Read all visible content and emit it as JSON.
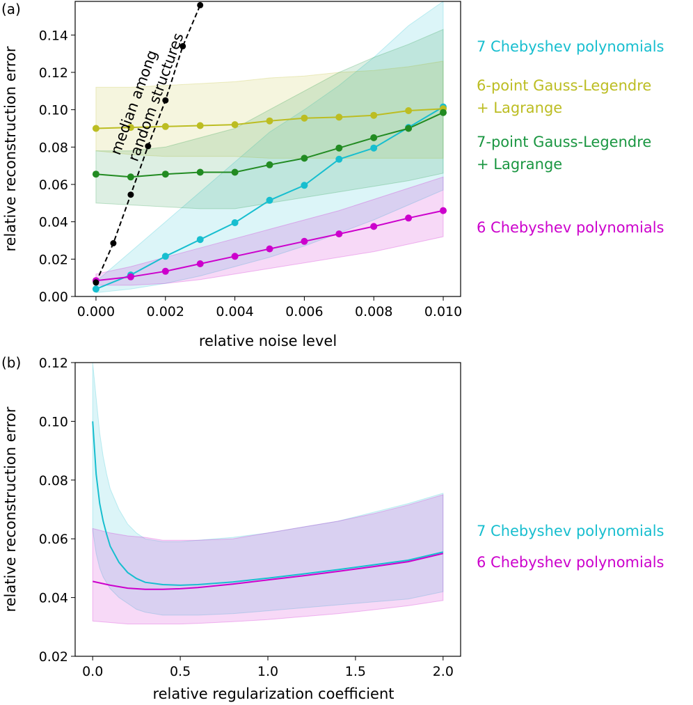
{
  "chart_data": [
    {
      "panel_label": "(a)",
      "type": "line",
      "xlabel": "relative noise level",
      "ylabel": "relative reconstruction error",
      "xlim": [
        -0.0006,
        0.0105
      ],
      "ylim": [
        0.0,
        0.158
      ],
      "xticks": [
        0.0,
        0.002,
        0.004,
        0.006,
        0.008,
        0.01
      ],
      "xtick_labels": [
        "0.000",
        "0.002",
        "0.004",
        "0.006",
        "0.008",
        "0.010"
      ],
      "yticks": [
        0.0,
        0.02,
        0.04,
        0.06,
        0.08,
        0.1,
        0.12,
        0.14
      ],
      "ytick_labels": [
        "0.00",
        "0.02",
        "0.04",
        "0.06",
        "0.08",
        "0.10",
        "0.12",
        "0.14"
      ],
      "annotation": {
        "line1": "median among",
        "line2": "random structures"
      },
      "series": [
        {
          "name": "7 Chebyshev polynomials",
          "color": "#17becf",
          "label_lines": [
            "7 Chebyshev polynomials"
          ],
          "x": [
            0.0,
            0.001,
            0.002,
            0.003,
            0.004,
            0.005,
            0.006,
            0.007,
            0.008,
            0.009,
            0.01
          ],
          "values": [
            0.004,
            0.0115,
            0.0215,
            0.0305,
            0.0395,
            0.0515,
            0.0595,
            0.0735,
            0.0795,
            0.0905,
            0.1015
          ],
          "band_lower": [
            0.002,
            0.004,
            0.007,
            0.011,
            0.016,
            0.021,
            0.027,
            0.034,
            0.041,
            0.049,
            0.057
          ],
          "band_upper": [
            0.008,
            0.024,
            0.04,
            0.056,
            0.072,
            0.088,
            0.1,
            0.113,
            0.128,
            0.145,
            0.158
          ]
        },
        {
          "name": "6-point Gauss-Legendre + Lagrange",
          "color": "#bcbd22",
          "label_lines": [
            "6-point Gauss-Legendre",
            "+ Lagrange"
          ],
          "x": [
            0.0,
            0.001,
            0.002,
            0.003,
            0.004,
            0.005,
            0.006,
            0.007,
            0.008,
            0.009,
            0.01
          ],
          "values": [
            0.09,
            0.0905,
            0.091,
            0.0915,
            0.092,
            0.094,
            0.0955,
            0.096,
            0.097,
            0.0995,
            0.1005
          ],
          "band_lower": [
            0.078,
            0.076,
            0.075,
            0.075,
            0.075,
            0.074,
            0.074,
            0.074,
            0.074,
            0.074,
            0.074
          ],
          "band_upper": [
            0.112,
            0.112,
            0.113,
            0.114,
            0.115,
            0.117,
            0.118,
            0.12,
            0.121,
            0.123,
            0.126
          ]
        },
        {
          "name": "7-point Gauss-Legendre + Lagrange",
          "color": "#1a9641",
          "line_color": "#228b22",
          "label_lines": [
            "7-point Gauss-Legendre",
            "+ Lagrange"
          ],
          "x": [
            0.0,
            0.001,
            0.002,
            0.003,
            0.004,
            0.005,
            0.006,
            0.007,
            0.008,
            0.009,
            0.01
          ],
          "values": [
            0.0655,
            0.064,
            0.0655,
            0.0665,
            0.0665,
            0.0705,
            0.074,
            0.0795,
            0.085,
            0.09,
            0.0985
          ],
          "band_lower": [
            0.05,
            0.049,
            0.048,
            0.047,
            0.047,
            0.05,
            0.053,
            0.056,
            0.059,
            0.062,
            0.066
          ],
          "band_upper": [
            0.078,
            0.078,
            0.08,
            0.085,
            0.09,
            0.1,
            0.11,
            0.12,
            0.128,
            0.135,
            0.143
          ]
        },
        {
          "name": "6 Chebyshev polynomials",
          "color": "#cc00cc",
          "label_lines": [
            "6 Chebyshev polynomials"
          ],
          "x": [
            0.0,
            0.001,
            0.002,
            0.003,
            0.004,
            0.005,
            0.006,
            0.007,
            0.008,
            0.009,
            0.01
          ],
          "values": [
            0.0085,
            0.0105,
            0.0135,
            0.0175,
            0.0215,
            0.0255,
            0.0295,
            0.0335,
            0.0375,
            0.042,
            0.046
          ],
          "band_lower": [
            0.006,
            0.006,
            0.007,
            0.009,
            0.012,
            0.015,
            0.018,
            0.021,
            0.024,
            0.028,
            0.032
          ],
          "band_upper": [
            0.012,
            0.016,
            0.021,
            0.026,
            0.031,
            0.036,
            0.041,
            0.046,
            0.052,
            0.058,
            0.064
          ]
        },
        {
          "name": "median among random structures",
          "color": "#000000",
          "dashed": true,
          "x": [
            0.0,
            0.0005,
            0.001,
            0.0015,
            0.002,
            0.0025,
            0.003
          ],
          "values": [
            0.0075,
            0.0285,
            0.0545,
            0.0805,
            0.105,
            0.134,
            0.156
          ]
        }
      ]
    },
    {
      "panel_label": "(b)",
      "type": "line",
      "xlabel": "relative regularization coefficient",
      "ylabel": "relative reconstruction error",
      "xlim": [
        -0.1,
        2.1
      ],
      "ylim": [
        0.02,
        0.12
      ],
      "xticks": [
        0.0,
        0.5,
        1.0,
        1.5,
        2.0
      ],
      "xtick_labels": [
        "0.0",
        "0.5",
        "1.0",
        "1.5",
        "2.0"
      ],
      "yticks": [
        0.02,
        0.04,
        0.06,
        0.08,
        0.1,
        0.12
      ],
      "ytick_labels": [
        "0.02",
        "0.04",
        "0.06",
        "0.08",
        "0.10",
        "0.12"
      ],
      "series": [
        {
          "name": "7 Chebyshev polynomials",
          "color": "#17becf",
          "label_lines": [
            "7 Chebyshev polynomials"
          ],
          "x": [
            0.0,
            0.02,
            0.04,
            0.06,
            0.08,
            0.1,
            0.15,
            0.2,
            0.25,
            0.3,
            0.4,
            0.5,
            0.6,
            0.8,
            1.0,
            1.2,
            1.4,
            1.6,
            1.8,
            2.0
          ],
          "values": [
            0.1,
            0.082,
            0.072,
            0.066,
            0.0615,
            0.0575,
            0.052,
            0.0485,
            0.0465,
            0.0452,
            0.0444,
            0.0442,
            0.0444,
            0.0453,
            0.0466,
            0.048,
            0.0495,
            0.0511,
            0.0527,
            0.0555
          ],
          "band_lower": [
            0.063,
            0.055,
            0.05,
            0.047,
            0.045,
            0.043,
            0.04,
            0.038,
            0.036,
            0.035,
            0.034,
            0.034,
            0.034,
            0.0345,
            0.0355,
            0.0365,
            0.0375,
            0.0385,
            0.0395,
            0.042
          ],
          "band_upper": [
            0.12,
            0.108,
            0.096,
            0.088,
            0.082,
            0.077,
            0.07,
            0.065,
            0.062,
            0.06,
            0.059,
            0.059,
            0.0595,
            0.0605,
            0.062,
            0.064,
            0.066,
            0.069,
            0.072,
            0.0755
          ]
        },
        {
          "name": "6 Chebyshev polynomials",
          "color": "#cc00cc",
          "label_lines": [
            "6 Chebyshev polynomials"
          ],
          "x": [
            0.0,
            0.1,
            0.2,
            0.3,
            0.4,
            0.5,
            0.6,
            0.8,
            1.0,
            1.2,
            1.4,
            1.6,
            1.8,
            2.0
          ],
          "values": [
            0.0455,
            0.0442,
            0.0432,
            0.0428,
            0.0428,
            0.043,
            0.0434,
            0.0446,
            0.046,
            0.0474,
            0.0489,
            0.0505,
            0.0522,
            0.055
          ],
          "band_lower": [
            0.032,
            0.0315,
            0.031,
            0.031,
            0.031,
            0.031,
            0.0312,
            0.0318,
            0.0325,
            0.0335,
            0.0345,
            0.0358,
            0.0372,
            0.039
          ],
          "band_upper": [
            0.0635,
            0.062,
            0.061,
            0.0605,
            0.0595,
            0.0595,
            0.0595,
            0.06,
            0.062,
            0.064,
            0.066,
            0.0685,
            0.0715,
            0.075
          ]
        }
      ]
    }
  ]
}
